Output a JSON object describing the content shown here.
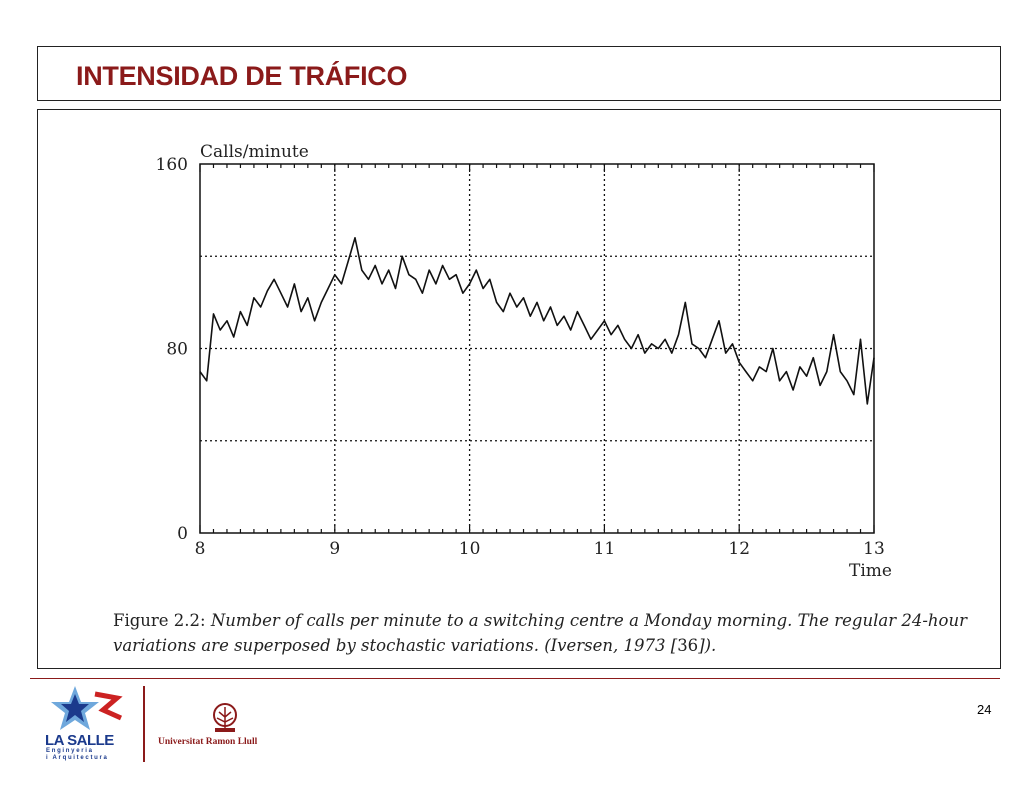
{
  "slide": {
    "title": "INTENSIDAD DE TRÁFICO",
    "page_number": "24",
    "caption_prefix": "Figure 2.2: ",
    "caption_italic_1": "Number of calls per minute to a switching centre a Monday morning. The regular 24-hour variations are superposed by stochastic variations. (Iversen, 1973 [",
    "caption_ref": "36",
    "caption_italic_2": "]).",
    "logos": {
      "lasalle_name": "LA SALLE",
      "lasalle_sub1": "Enginyeria",
      "lasalle_sub2": "i Arquitectura",
      "university_name": "Universitat Ramon Llull"
    }
  },
  "colors": {
    "title": "#8b1a1a",
    "footer_line": "#8b1a1a",
    "lasalle_blue": "#1b3a8c"
  },
  "chart_data": {
    "type": "line",
    "ylabel": "Calls/minute",
    "xlabel": "Time",
    "xlim": [
      8,
      13
    ],
    "ylim": [
      0,
      160
    ],
    "x_ticks": [
      "8",
      "9",
      "10",
      "11",
      "12",
      "13"
    ],
    "y_ticks": [
      "0",
      "80",
      "160"
    ],
    "grid_vertical": [
      9,
      10,
      11,
      12
    ],
    "grid_horizontal": [
      40,
      80,
      120
    ],
    "series": [
      {
        "x": [
          8.0,
          8.05,
          8.1,
          8.15,
          8.2,
          8.25,
          8.3,
          8.35,
          8.4,
          8.45,
          8.5,
          8.55,
          8.6,
          8.65,
          8.7,
          8.75,
          8.8,
          8.85,
          8.9,
          8.95,
          9.0,
          9.05,
          9.1,
          9.15,
          9.2,
          9.25,
          9.3,
          9.35,
          9.4,
          9.45,
          9.5,
          9.55,
          9.6,
          9.65,
          9.7,
          9.75,
          9.8,
          9.85,
          9.9,
          9.95,
          10.0,
          10.05,
          10.1,
          10.15,
          10.2,
          10.25,
          10.3,
          10.35,
          10.4,
          10.45,
          10.5,
          10.55,
          10.6,
          10.65,
          10.7,
          10.75,
          10.8,
          10.85,
          10.9,
          10.95,
          11.0,
          11.05,
          11.1,
          11.15,
          11.2,
          11.25,
          11.3,
          11.35,
          11.4,
          11.45,
          11.5,
          11.55,
          11.6,
          11.65,
          11.7,
          11.75,
          11.8,
          11.85,
          11.9,
          11.95,
          12.0,
          12.05,
          12.1,
          12.15,
          12.2,
          12.25,
          12.3,
          12.35,
          12.4,
          12.45,
          12.5,
          12.55,
          12.6,
          12.65,
          12.7,
          12.75,
          12.8,
          12.85,
          12.9,
          12.95,
          13.0
        ],
        "values": [
          70,
          66,
          95,
          88,
          92,
          85,
          96,
          90,
          102,
          98,
          105,
          110,
          104,
          98,
          108,
          96,
          102,
          92,
          100,
          106,
          112,
          108,
          118,
          128,
          114,
          110,
          116,
          108,
          114,
          106,
          120,
          112,
          110,
          104,
          114,
          108,
          116,
          110,
          112,
          104,
          108,
          114,
          106,
          110,
          100,
          96,
          104,
          98,
          102,
          94,
          100,
          92,
          98,
          90,
          94,
          88,
          96,
          90,
          84,
          88,
          92,
          86,
          90,
          84,
          80,
          86,
          78,
          82,
          80,
          84,
          78,
          86,
          100,
          82,
          80,
          76,
          84,
          92,
          78,
          82,
          74,
          70,
          66,
          72,
          70,
          80,
          66,
          70,
          62,
          72,
          68,
          76,
          64,
          70,
          86,
          70,
          66,
          60,
          84,
          56,
          76
        ],
        "approximate": true
      }
    ]
  }
}
